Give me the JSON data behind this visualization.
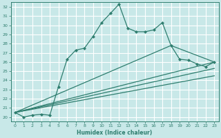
{
  "xlabel": "Humidex (Indice chaleur)",
  "background_color": "#c8e8e8",
  "grid_color": "#ffffff",
  "line_color": "#2e7d6e",
  "xlim": [
    -0.5,
    23.5
  ],
  "ylim": [
    19.5,
    32.5
  ],
  "yticks": [
    20,
    21,
    22,
    23,
    24,
    25,
    26,
    27,
    28,
    29,
    30,
    31,
    32
  ],
  "xticks": [
    0,
    1,
    2,
    3,
    4,
    5,
    6,
    7,
    8,
    9,
    10,
    11,
    12,
    13,
    14,
    15,
    16,
    17,
    18,
    19,
    20,
    21,
    22,
    23
  ],
  "main_series": {
    "x": [
      0,
      1,
      2,
      3,
      4,
      5,
      6,
      7,
      8,
      9,
      10,
      11,
      12,
      13,
      14,
      15,
      16,
      17,
      18,
      19,
      20,
      21,
      22,
      23
    ],
    "y": [
      20.5,
      20.0,
      20.2,
      20.3,
      20.2,
      23.3,
      26.3,
      27.3,
      27.5,
      28.8,
      30.3,
      31.3,
      32.3,
      29.7,
      29.3,
      29.3,
      29.5,
      30.3,
      27.8,
      26.3,
      26.2,
      25.8,
      25.5,
      26.0
    ]
  },
  "fan_lines": [
    {
      "x": [
        0,
        23
      ],
      "y": [
        20.5,
        26.0
      ]
    },
    {
      "x": [
        0,
        23
      ],
      "y": [
        20.5,
        25.3
      ]
    },
    {
      "x": [
        0,
        23
      ],
      "y": [
        20.5,
        24.5
      ]
    },
    {
      "x": [
        0,
        18,
        23
      ],
      "y": [
        20.5,
        27.8,
        26.0
      ]
    }
  ]
}
